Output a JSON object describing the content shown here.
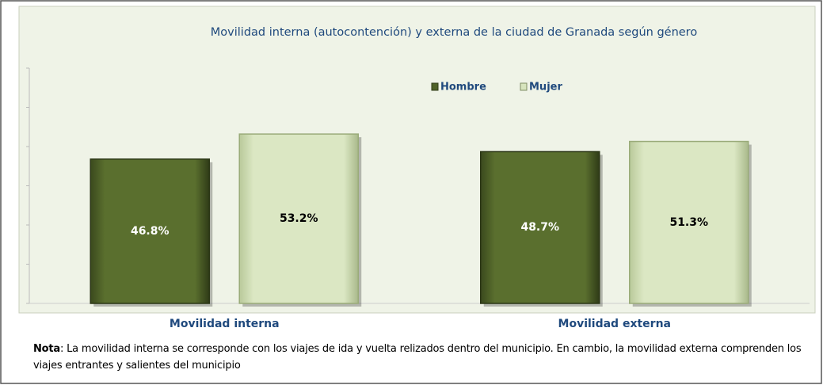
{
  "chart_data": {
    "type": "bar",
    "title": "Movilidad interna (autocontención)  y externa de la ciudad de Granada según género",
    "categories": [
      "Movilidad interna",
      "Movilidad  externa"
    ],
    "series": [
      {
        "name": "Hombre",
        "color": "#4f6228",
        "values": [
          46.8,
          48.7
        ],
        "value_labels": [
          "46.8%",
          "48.7%"
        ]
      },
      {
        "name": "Mujer",
        "color": "#d7e4bd",
        "values": [
          53.2,
          51.3
        ],
        "value_labels": [
          "53.2%",
          "51.3%"
        ]
      }
    ],
    "ylim": [
      10,
      70
    ],
    "yticks": [
      10,
      20,
      30,
      40,
      50,
      60,
      70
    ]
  },
  "note": {
    "label": "Nota",
    "text": ": La movilidad interna se corresponde con los viajes de ida y vuelta relizados dentro del municipio. En cambio, la movilidad externa comprenden los viajes entrantes y salientes del municipio"
  }
}
